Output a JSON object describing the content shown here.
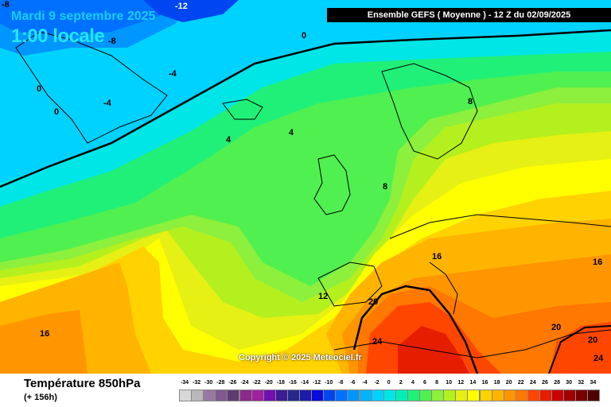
{
  "header": {
    "date": "Mardi 9 septembre 2025",
    "time": "1:00 locale",
    "model": "Ensemble GEFS  ( Moyenne )  -  12 Z du 02/09/2025"
  },
  "copyright": "Copyright © 2025 Meteociel.fr",
  "footer": {
    "variable": "Température 850hPa",
    "lead": "(+ 156h)"
  },
  "isotherm_labels": [
    {
      "text": "-12"
    },
    {
      "text": "-8"
    },
    {
      "text": "-8"
    },
    {
      "text": "-4"
    },
    {
      "text": "-4"
    },
    {
      "text": "0"
    },
    {
      "text": "0"
    },
    {
      "text": "0"
    },
    {
      "text": "4"
    },
    {
      "text": "4"
    },
    {
      "text": "8"
    },
    {
      "text": "8"
    },
    {
      "text": "12"
    },
    {
      "text": "16"
    },
    {
      "text": "16"
    },
    {
      "text": "16"
    },
    {
      "text": "20"
    },
    {
      "text": "20"
    },
    {
      "text": "20"
    },
    {
      "text": "24"
    },
    {
      "text": "24"
    }
  ],
  "legend": {
    "ticks": [
      "-34",
      "-32",
      "-30",
      "-28",
      "-26",
      "-24",
      "-22",
      "-20",
      "-18",
      "-16",
      "-14",
      "-12",
      "-10",
      "-8",
      "-6",
      "-4",
      "-2",
      "0",
      "2",
      "4",
      "6",
      "8",
      "10",
      "12",
      "14",
      "16",
      "18",
      "20",
      "22",
      "24",
      "26",
      "28",
      "30",
      "32",
      "34"
    ],
    "colors": [
      "#d8d8d8",
      "#b8b8b8",
      "#9878a0",
      "#7e5a8e",
      "#5e3c70",
      "#8a2a8a",
      "#a020a0",
      "#7010b0",
      "#3c1c94",
      "#28288c",
      "#1c1caa",
      "#0a0adc",
      "#0046f0",
      "#0070ff",
      "#0096ff",
      "#00b4ff",
      "#00d2ff",
      "#00e6e6",
      "#00f0b4",
      "#20f078",
      "#50f050",
      "#8cf03c",
      "#b4f01e",
      "#e6f014",
      "#ffff00",
      "#ffd200",
      "#ffb400",
      "#ff9600",
      "#ff7800",
      "#ff4600",
      "#e61e00",
      "#c80000",
      "#a00000",
      "#780000",
      "#500000"
    ]
  }
}
